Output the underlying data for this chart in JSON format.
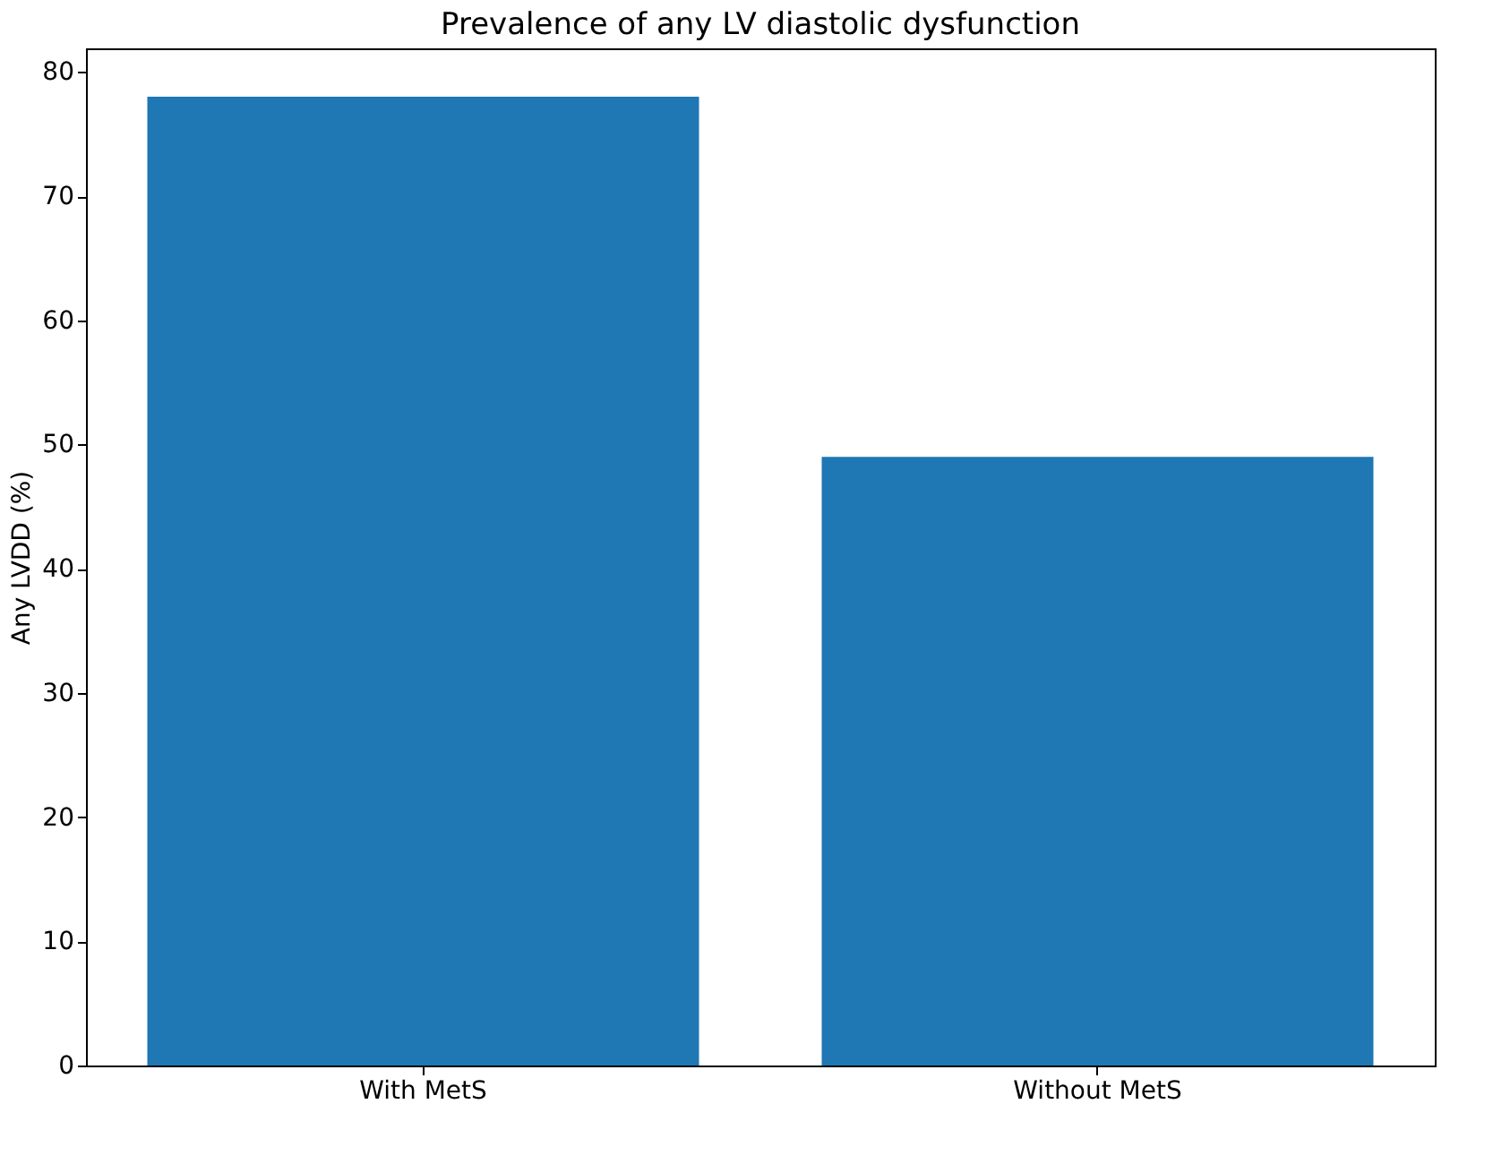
{
  "chart_data": {
    "type": "bar",
    "title": "Prevalence of any LV diastolic dysfunction",
    "ylabel": "Any LVDD (%)",
    "categories": [
      "With MetS",
      "Without MetS"
    ],
    "values": [
      78,
      49
    ],
    "color": "#1f77b4",
    "ylim": [
      0,
      81.9
    ],
    "yticks": [
      0,
      10,
      20,
      30,
      40,
      50,
      60,
      70,
      80
    ],
    "grid": false
  }
}
